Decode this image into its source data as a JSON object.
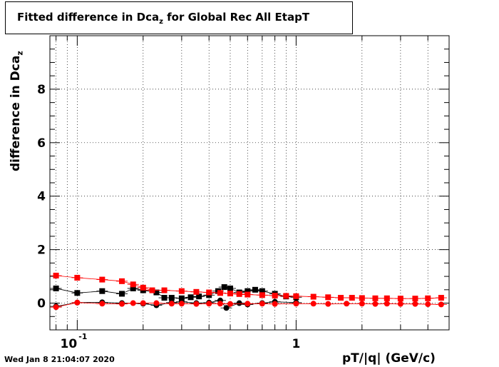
{
  "title": {
    "main": "Fitted difference in Dca",
    "sub": "z",
    "rest": " for Global Rec All EtapT"
  },
  "footer_text": "Wed Jan  8 21:04:07 2020",
  "chart_data": {
    "type": "scatter",
    "title": "Fitted difference in Dca_z for Global Rec All EtapT",
    "xlabel": "pT/|q| (GeV/c)",
    "ylabel": "difference in Dca_z",
    "xscale": "log",
    "xlim": [
      0.075,
      5.0
    ],
    "ylim": [
      -1,
      10
    ],
    "grid": true,
    "x_tick_labels": [
      {
        "value": 0.1,
        "label": "10^-1"
      },
      {
        "value": 1,
        "label": "1"
      }
    ],
    "y_tick_labels": [
      0,
      2,
      4,
      6,
      8
    ],
    "series": [
      {
        "marker": "square",
        "color": "#000000",
        "points": [
          [
            0.08,
            0.55
          ],
          [
            0.1,
            0.38
          ],
          [
            0.13,
            0.45
          ],
          [
            0.16,
            0.35
          ],
          [
            0.18,
            0.55
          ],
          [
            0.2,
            0.48
          ],
          [
            0.23,
            0.4
          ],
          [
            0.25,
            0.2
          ],
          [
            0.27,
            0.2
          ],
          [
            0.3,
            0.18
          ],
          [
            0.33,
            0.22
          ],
          [
            0.36,
            0.25
          ],
          [
            0.4,
            0.3
          ],
          [
            0.44,
            0.45
          ],
          [
            0.47,
            0.6
          ],
          [
            0.5,
            0.55
          ],
          [
            0.55,
            0.4
          ],
          [
            0.6,
            0.45
          ],
          [
            0.65,
            0.5
          ],
          [
            0.7,
            0.45
          ],
          [
            0.8,
            0.35
          ],
          [
            0.9,
            0.25
          ],
          [
            1.0,
            0.22
          ]
        ]
      },
      {
        "marker": "circle",
        "color": "#000000",
        "points": [
          [
            0.08,
            -0.12
          ],
          [
            0.1,
            0.02
          ],
          [
            0.13,
            0.03
          ],
          [
            0.16,
            0.0
          ],
          [
            0.2,
            -0.02
          ],
          [
            0.23,
            -0.08
          ],
          [
            0.27,
            0.02
          ],
          [
            0.3,
            0.05
          ],
          [
            0.35,
            0.0
          ],
          [
            0.4,
            0.02
          ],
          [
            0.45,
            0.1
          ],
          [
            0.48,
            -0.18
          ],
          [
            0.55,
            0.0
          ],
          [
            0.6,
            -0.05
          ],
          [
            0.7,
            0.0
          ],
          [
            0.8,
            0.05
          ],
          [
            1.0,
            0.02
          ]
        ]
      },
      {
        "marker": "square",
        "color": "#ff0000",
        "points": [
          [
            0.08,
            1.03
          ],
          [
            0.1,
            0.95
          ],
          [
            0.13,
            0.88
          ],
          [
            0.16,
            0.82
          ],
          [
            0.18,
            0.7
          ],
          [
            0.2,
            0.58
          ],
          [
            0.22,
            0.48
          ],
          [
            0.25,
            0.48
          ],
          [
            0.3,
            0.45
          ],
          [
            0.35,
            0.42
          ],
          [
            0.4,
            0.4
          ],
          [
            0.45,
            0.38
          ],
          [
            0.5,
            0.36
          ],
          [
            0.55,
            0.34
          ],
          [
            0.6,
            0.32
          ],
          [
            0.7,
            0.3
          ],
          [
            0.8,
            0.28
          ],
          [
            0.9,
            0.27
          ],
          [
            1.0,
            0.26
          ],
          [
            1.2,
            0.24
          ],
          [
            1.4,
            0.22
          ],
          [
            1.6,
            0.2
          ],
          [
            1.8,
            0.2
          ],
          [
            2.0,
            0.19
          ],
          [
            2.3,
            0.18
          ],
          [
            2.6,
            0.18
          ],
          [
            3.0,
            0.17
          ],
          [
            3.5,
            0.17
          ],
          [
            4.0,
            0.18
          ],
          [
            4.6,
            0.2
          ]
        ]
      },
      {
        "marker": "circle",
        "color": "#ff0000",
        "points": [
          [
            0.08,
            -0.15
          ],
          [
            0.1,
            0.02
          ],
          [
            0.13,
            -0.02
          ],
          [
            0.16,
            -0.03
          ],
          [
            0.18,
            0.0
          ],
          [
            0.2,
            0.0
          ],
          [
            0.23,
            0.0
          ],
          [
            0.27,
            -0.02
          ],
          [
            0.3,
            -0.02
          ],
          [
            0.35,
            -0.03
          ],
          [
            0.4,
            -0.02
          ],
          [
            0.45,
            -0.02
          ],
          [
            0.5,
            -0.03
          ],
          [
            0.6,
            -0.02
          ],
          [
            0.7,
            -0.02
          ],
          [
            0.8,
            -0.03
          ],
          [
            1.0,
            -0.02
          ],
          [
            1.2,
            -0.02
          ],
          [
            1.4,
            -0.03
          ],
          [
            1.7,
            -0.02
          ],
          [
            2.0,
            -0.02
          ],
          [
            2.3,
            -0.03
          ],
          [
            2.6,
            -0.02
          ],
          [
            3.0,
            -0.03
          ],
          [
            3.5,
            -0.03
          ],
          [
            4.0,
            -0.04
          ],
          [
            4.6,
            -0.05
          ]
        ]
      }
    ]
  }
}
